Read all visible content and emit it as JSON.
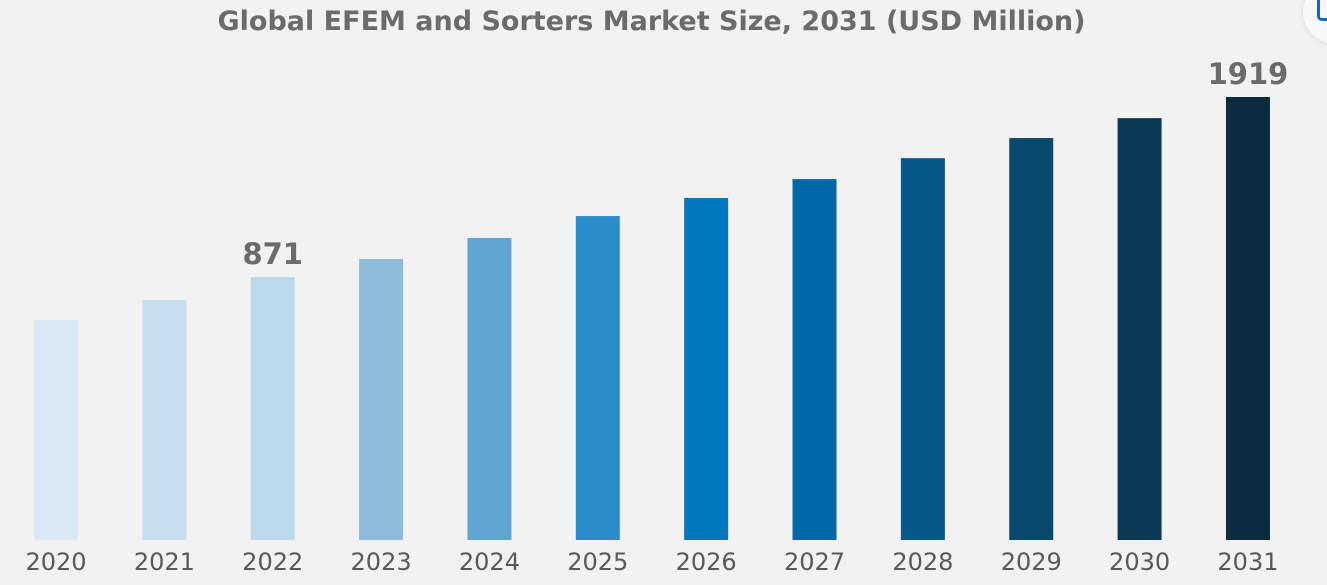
{
  "chart_data": {
    "type": "bar",
    "title": "Global EFEM and Sorters Market Size, 2031 (USD Million)",
    "categories": [
      "2020",
      "2021",
      "2022",
      "2023",
      "2024",
      "2025",
      "2026",
      "2027",
      "2028",
      "2029",
      "2030",
      "2031"
    ],
    "values": [
      620,
      737,
      871,
      976,
      1098,
      1226,
      1331,
      1441,
      1563,
      1680,
      1796,
      1919
    ],
    "data_labels": {
      "2022": "871",
      "2031": "1919"
    },
    "colors": [
      "#d9eaf6",
      "#c5dfee",
      "#bcd9ec",
      "#8dbcda",
      "#5ea6d1",
      "#2b8ecb",
      "#0078be",
      "#0068a8",
      "#055888",
      "#08496e",
      "#0b3a57",
      "#0a2b40"
    ],
    "grid": false,
    "xlabel": "",
    "ylabel": ""
  },
  "corner_button": {
    "icon": "share-icon",
    "color": "#1565c0"
  }
}
